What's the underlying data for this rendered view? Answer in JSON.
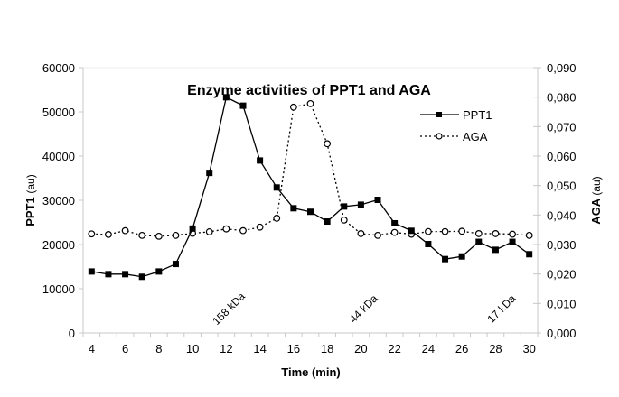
{
  "chart_data": {
    "type": "line",
    "title": "Enzyme activities of PPT1 and AGA",
    "xlabel": "Time (min)",
    "ylabel_left": {
      "main": "PPT1",
      "unit": "(au)"
    },
    "ylabel_right": {
      "main": "AGA",
      "unit": "(au)"
    },
    "x": [
      4,
      5,
      6,
      7,
      8,
      9,
      10,
      11,
      12,
      13,
      14,
      15,
      16,
      17,
      18,
      19,
      20,
      21,
      22,
      23,
      24,
      25,
      26,
      27,
      28,
      29,
      30
    ],
    "x_tick_labels": [
      "4",
      "6",
      "8",
      "10",
      "12",
      "14",
      "16",
      "18",
      "20",
      "22",
      "24",
      "26",
      "28",
      "30"
    ],
    "y_left_ticks": [
      "0",
      "10000",
      "20000",
      "30000",
      "40000",
      "50000",
      "60000"
    ],
    "y_right_ticks": [
      "0,000",
      "0,010",
      "0,020",
      "0,030",
      "0,040",
      "0,050",
      "0,060",
      "0,070",
      "0,080",
      "0,090"
    ],
    "ylim_left": [
      0,
      60000
    ],
    "ylim_right": [
      0,
      0.09
    ],
    "grid": false,
    "legend": "right",
    "series": [
      {
        "name": "PPT1",
        "axis": "left",
        "style": "solid",
        "marker": "filled-square",
        "values": [
          13900,
          13300,
          13300,
          12700,
          13900,
          15600,
          23600,
          36200,
          53300,
          51400,
          39000,
          32900,
          28200,
          27400,
          25200,
          28600,
          29000,
          30100,
          24800,
          23100,
          20100,
          16700,
          17300,
          20600,
          18800,
          20600,
          17800
        ]
      },
      {
        "name": "AGA",
        "axis": "right",
        "style": "dotted",
        "marker": "open-circle",
        "values": [
          0.0336,
          0.0334,
          0.0347,
          0.0331,
          0.0328,
          0.0331,
          0.0338,
          0.0343,
          0.0353,
          0.0347,
          0.0359,
          0.0389,
          0.0766,
          0.0778,
          0.0642,
          0.0383,
          0.0337,
          0.0331,
          0.0341,
          0.0335,
          0.0344,
          0.0344,
          0.0345,
          0.0337,
          0.0337,
          0.0335,
          0.0331
        ]
      }
    ],
    "annotations": [
      {
        "text": "158 kDa",
        "x": 12.3
      },
      {
        "text": "44 kDa",
        "x": 20.3
      },
      {
        "text": "17 kDa",
        "x": 28.5
      }
    ],
    "colors": {
      "line": "#000000",
      "axis": "#c8c8c8",
      "text": "#000000"
    }
  }
}
